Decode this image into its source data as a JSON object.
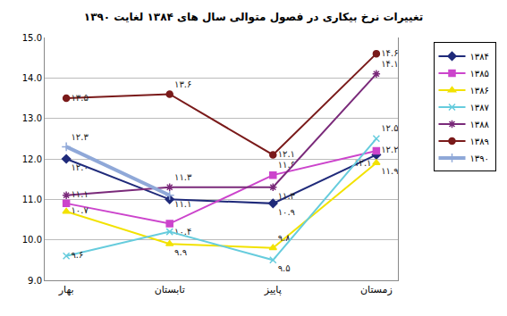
{
  "chart_data": {
    "type": "line",
    "title": "تغییرات نرخ بیکاری در فصول متوالی سال های ۱۳۸۴ لغایت ۱۳۹۰",
    "categories": [
      "بهار",
      "تابستان",
      "پاییز",
      "زمستان"
    ],
    "ylim": [
      9,
      15
    ],
    "yticks": [
      {
        "value": 9,
        "label": "9.0"
      },
      {
        "value": 10,
        "label": "10.0"
      },
      {
        "value": 11,
        "label": "11.0"
      },
      {
        "value": 12,
        "label": "12.0"
      },
      {
        "value": 13,
        "label": "13.0"
      },
      {
        "value": 14,
        "label": "14.0"
      },
      {
        "value": 15,
        "label": "15.0"
      }
    ],
    "grid": true,
    "legend": "right",
    "data_labels": true,
    "series": [
      {
        "name": "۱۳۸۴",
        "color": "#1f2a7a",
        "marker": "diamond",
        "values": [
          12.0,
          11.0,
          10.9,
          12.1
        ],
        "value_labels": [
          "۱۲.۰",
          null,
          "۱۰.۹",
          "۱۲.۱"
        ]
      },
      {
        "name": "۱۳۸۵",
        "color": "#cc44cc",
        "marker": "square",
        "values": [
          10.9,
          10.4,
          11.6,
          12.2
        ],
        "value_labels": [
          null,
          "۱۰.۴",
          "۱۱.۶",
          "۱۲.۲"
        ]
      },
      {
        "name": "۱۳۸۶",
        "color": "#f2e200",
        "marker": "triangle",
        "values": [
          10.7,
          9.9,
          9.8,
          11.9
        ],
        "value_labels": [
          "۱۰.۷",
          "۹.۹",
          "۹.۸",
          "۱۱.۹"
        ]
      },
      {
        "name": "۱۳۸۷",
        "color": "#66ccdd",
        "marker": "x",
        "values": [
          9.6,
          10.2,
          9.5,
          12.5
        ],
        "value_labels": [
          "۹.۶",
          null,
          "۹.۵",
          "۱۲.۵"
        ]
      },
      {
        "name": "۱۳۸۸",
        "color": "#7a2a7a",
        "marker": "asterisk",
        "values": [
          11.1,
          11.3,
          11.3,
          14.1
        ],
        "value_labels": [
          "۱۱.۱",
          "۱۱.۳",
          "۱۱.۳",
          "۱۴.۱"
        ]
      },
      {
        "name": "۱۳۸۹",
        "color": "#7a1a1a",
        "marker": "circle",
        "values": [
          13.5,
          13.6,
          12.1,
          14.6
        ],
        "value_labels": [
          "۱۳.۵",
          "۱۳.۶",
          "۱۲.۱",
          "۱۴.۶"
        ]
      },
      {
        "name": "۱۳۹۰",
        "color": "#8fa8d8",
        "marker": "cross",
        "values": [
          12.3,
          11.1,
          null,
          null
        ],
        "value_labels": [
          "۱۲.۳",
          "۱۱.۱",
          null,
          null
        ]
      }
    ]
  }
}
